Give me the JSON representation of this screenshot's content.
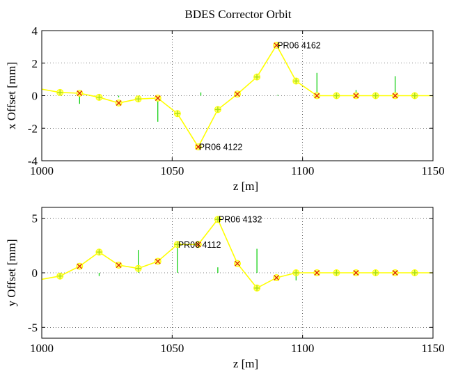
{
  "chart_data": [
    {
      "type": "line",
      "title": "BDES Corrector Orbit",
      "xlabel": "z [m]",
      "ylabel": "x Offset [mm]",
      "xlim": [
        1000,
        1150
      ],
      "ylim": [
        -4,
        4
      ],
      "xticks": [
        1000,
        1050,
        1100,
        1150
      ],
      "yticks": [
        -4,
        -2,
        0,
        2,
        4
      ],
      "grid": "dotted",
      "colors": {
        "orbit": "#ffff00",
        "bpm": "#a8e010",
        "corrector": "#00cc00",
        "marker_x": "#dd2200",
        "axis": "#000000"
      },
      "orbit": {
        "x": [
          1000,
          1007,
          1014.5,
          1022,
          1029.5,
          1037,
          1044.5,
          1052,
          1060,
          1067.5,
          1075,
          1082.5,
          1090,
          1097.5,
          1105.5,
          1113,
          1120.5,
          1128,
          1135.5,
          1143,
          1150
        ],
        "y": [
          0.4,
          0.2,
          0.15,
          -0.1,
          -0.45,
          -0.2,
          -0.15,
          -1.1,
          -3.15,
          -0.85,
          0.1,
          1.15,
          3.1,
          0.9,
          0.0,
          0.0,
          0.0,
          0.0,
          0.0,
          0.0,
          0.0
        ]
      },
      "bpms": {
        "x": [
          1007,
          1022,
          1037,
          1052,
          1067.5,
          1082.5,
          1097.5,
          1113,
          1128,
          1143
        ],
        "y": [
          0.2,
          -0.1,
          -0.2,
          -1.1,
          -0.85,
          1.15,
          0.9,
          0.0,
          0.0,
          0.0
        ]
      },
      "correctors": {
        "x": [
          1014.5,
          1029.5,
          1044.5,
          1060,
          1075,
          1090,
          1105.5,
          1120.5,
          1135.5
        ],
        "y": [
          0.15,
          -0.45,
          -0.15,
          -3.15,
          0.1,
          3.1,
          0.0,
          0.0,
          0.0
        ]
      },
      "kicks": {
        "x": [
          1014.5,
          1029.5,
          1044.5,
          1061,
          1090.5,
          1105.5,
          1120.5,
          1135.5
        ],
        "y": [
          -0.5,
          -0.1,
          -1.6,
          0.2,
          0.05,
          1.4,
          0.35,
          1.2
        ]
      },
      "annotations": [
        {
          "text": "PR06 4162",
          "x": 1090,
          "y": 3.1
        },
        {
          "text": "PR06 4122",
          "x": 1060,
          "y": -3.15
        }
      ]
    },
    {
      "type": "line",
      "title": "",
      "xlabel": "z [m]",
      "ylabel": "y Offset [mm]",
      "xlim": [
        1000,
        1150
      ],
      "ylim": [
        -6,
        6
      ],
      "xticks": [
        1000,
        1050,
        1100,
        1150
      ],
      "yticks": [
        -5,
        0,
        5
      ],
      "grid": "dotted",
      "colors": {
        "orbit": "#ffff00",
        "bpm": "#a8e010",
        "corrector": "#00cc00",
        "marker_x": "#dd2200",
        "axis": "#000000"
      },
      "orbit": {
        "x": [
          1000,
          1007,
          1014.5,
          1022,
          1029.5,
          1037,
          1044.5,
          1052,
          1060,
          1067.5,
          1075,
          1082.5,
          1090,
          1097.5,
          1105.5,
          1113,
          1120.5,
          1128,
          1135.5,
          1143,
          1150
        ],
        "y": [
          -0.6,
          -0.3,
          0.6,
          1.9,
          0.7,
          0.4,
          1.05,
          2.6,
          2.6,
          4.9,
          0.85,
          -1.4,
          -0.45,
          0.0,
          0.0,
          0.0,
          0.0,
          0.0,
          0.0,
          0.0,
          0.0
        ]
      },
      "bpms": {
        "x": [
          1007,
          1022,
          1037,
          1052,
          1067.5,
          1082.5,
          1097.5,
          1113,
          1128,
          1143
        ],
        "y": [
          -0.3,
          1.9,
          0.4,
          2.6,
          4.9,
          -1.4,
          0.0,
          0.0,
          0.0,
          0.0
        ]
      },
      "correctors": {
        "x": [
          1014.5,
          1029.5,
          1044.5,
          1060,
          1075,
          1090,
          1105.5,
          1120.5,
          1135.5
        ],
        "y": [
          0.6,
          0.7,
          1.05,
          2.6,
          0.85,
          -0.45,
          0.0,
          0.0,
          0.0
        ]
      },
      "kicks": {
        "x": [
          1007,
          1022,
          1037,
          1052,
          1067.5,
          1082.5,
          1097.5
        ],
        "y": [
          -0.2,
          -0.3,
          2.1,
          2.5,
          0.5,
          2.2,
          -0.7
        ]
      },
      "annotations": [
        {
          "text": "PR06 4132",
          "x": 1067.5,
          "y": 4.9
        },
        {
          "text": "PR06 4112",
          "x": 1052,
          "y": 2.6
        }
      ]
    }
  ]
}
